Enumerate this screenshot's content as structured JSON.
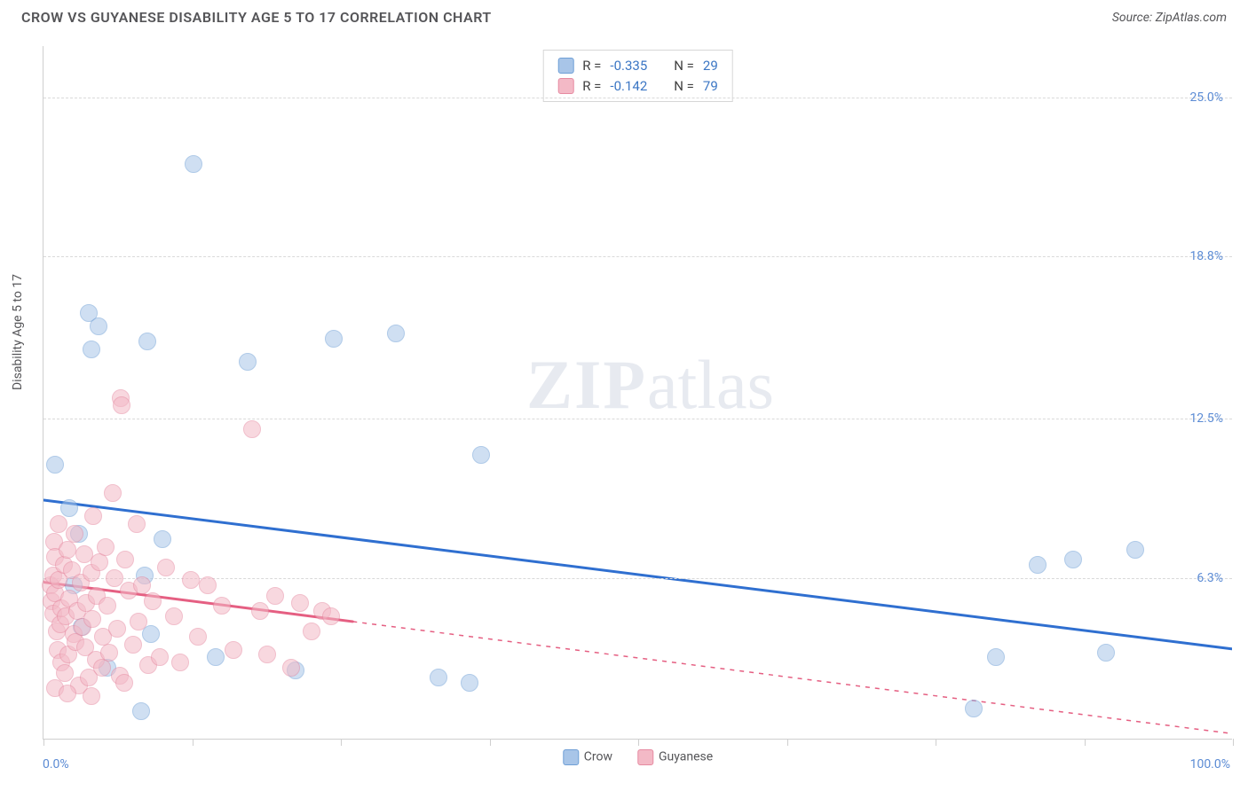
{
  "title": "CROW VS GUYANESE DISABILITY AGE 5 TO 17 CORRELATION CHART",
  "source": "Source: ZipAtlas.com",
  "y_axis_label": "Disability Age 5 to 17",
  "watermark_zip": "ZIP",
  "watermark_atlas": "atlas",
  "chart": {
    "type": "scatter",
    "xlim": [
      0,
      100
    ],
    "ylim": [
      0,
      27
    ],
    "x_min_label": "0.0%",
    "x_max_label": "100.0%",
    "x_ticks": [
      0,
      12.5,
      25,
      37.5,
      50,
      62.5,
      75,
      87.5,
      100
    ],
    "y_grid": [
      {
        "value": 6.3,
        "label": "6.3%"
      },
      {
        "value": 12.5,
        "label": "12.5%"
      },
      {
        "value": 18.8,
        "label": "18.8%"
      },
      {
        "value": 25.0,
        "label": "25.0%"
      }
    ],
    "background_color": "#ffffff",
    "grid_color": "#d9d9d9",
    "marker_radius": 10,
    "marker_opacity": 0.55,
    "series": [
      {
        "name": "Crow",
        "color_fill": "#a8c5e8",
        "color_stroke": "#6f9fd6",
        "line_color": "#2f6fd0",
        "line_width": 3,
        "r_value": "-0.335",
        "n_value": "29",
        "regression": {
          "x0": 0,
          "y0": 9.3,
          "x1": 100,
          "y1": 3.5
        },
        "regression_dash_from_x": 100,
        "points": [
          [
            1.0,
            10.7
          ],
          [
            2.2,
            9.0
          ],
          [
            3.0,
            8.0
          ],
          [
            3.8,
            16.6
          ],
          [
            4.6,
            16.1
          ],
          [
            4.0,
            15.2
          ],
          [
            8.7,
            15.5
          ],
          [
            8.5,
            6.4
          ],
          [
            8.2,
            1.1
          ],
          [
            9.0,
            4.1
          ],
          [
            10.0,
            7.8
          ],
          [
            12.6,
            22.4
          ],
          [
            14.5,
            3.2
          ],
          [
            17.2,
            14.7
          ],
          [
            21.2,
            2.7
          ],
          [
            24.4,
            15.6
          ],
          [
            29.6,
            15.8
          ],
          [
            33.2,
            2.4
          ],
          [
            35.8,
            2.2
          ],
          [
            36.8,
            11.1
          ],
          [
            78.2,
            1.2
          ],
          [
            80.1,
            3.2
          ],
          [
            83.6,
            6.8
          ],
          [
            86.6,
            7.0
          ],
          [
            89.3,
            3.4
          ],
          [
            91.8,
            7.4
          ],
          [
            2.5,
            6.0
          ],
          [
            3.2,
            4.4
          ],
          [
            5.4,
            2.8
          ]
        ]
      },
      {
        "name": "Guyanese",
        "color_fill": "#f3b9c6",
        "color_stroke": "#e68aa1",
        "line_color": "#e55f82",
        "line_width": 3,
        "r_value": "-0.142",
        "n_value": "79",
        "regression": {
          "x0": 0,
          "y0": 6.1,
          "x1": 100,
          "y1": 0.2
        },
        "regression_dash_from_x": 26,
        "points": [
          [
            0.6,
            6.0
          ],
          [
            0.7,
            5.4
          ],
          [
            0.8,
            6.4
          ],
          [
            0.8,
            4.9
          ],
          [
            0.9,
            7.7
          ],
          [
            1.0,
            5.7
          ],
          [
            1.0,
            7.1
          ],
          [
            1.1,
            4.2
          ],
          [
            1.2,
            3.5
          ],
          [
            1.3,
            6.2
          ],
          [
            1.3,
            8.4
          ],
          [
            1.4,
            4.5
          ],
          [
            1.5,
            5.1
          ],
          [
            1.5,
            3.0
          ],
          [
            1.7,
            6.8
          ],
          [
            1.8,
            2.6
          ],
          [
            1.9,
            4.8
          ],
          [
            2.0,
            7.4
          ],
          [
            2.1,
            3.3
          ],
          [
            2.2,
            5.5
          ],
          [
            2.4,
            6.6
          ],
          [
            2.5,
            4.1
          ],
          [
            2.6,
            8.0
          ],
          [
            2.7,
            3.8
          ],
          [
            2.8,
            5.0
          ],
          [
            3.0,
            2.1
          ],
          [
            3.1,
            6.1
          ],
          [
            3.3,
            4.4
          ],
          [
            3.4,
            7.2
          ],
          [
            3.5,
            3.6
          ],
          [
            3.6,
            5.3
          ],
          [
            3.8,
            2.4
          ],
          [
            4.0,
            6.5
          ],
          [
            4.1,
            4.7
          ],
          [
            4.2,
            8.7
          ],
          [
            4.4,
            3.1
          ],
          [
            4.5,
            5.6
          ],
          [
            4.7,
            6.9
          ],
          [
            4.9,
            2.8
          ],
          [
            5.0,
            4.0
          ],
          [
            5.2,
            7.5
          ],
          [
            5.4,
            5.2
          ],
          [
            5.5,
            3.4
          ],
          [
            5.8,
            9.6
          ],
          [
            6.0,
            6.3
          ],
          [
            6.2,
            4.3
          ],
          [
            6.4,
            2.5
          ],
          [
            6.5,
            13.3
          ],
          [
            6.6,
            13.0
          ],
          [
            6.9,
            7.0
          ],
          [
            7.2,
            5.8
          ],
          [
            7.5,
            3.7
          ],
          [
            7.8,
            8.4
          ],
          [
            8.0,
            4.6
          ],
          [
            8.3,
            6.0
          ],
          [
            8.8,
            2.9
          ],
          [
            9.2,
            5.4
          ],
          [
            9.8,
            3.2
          ],
          [
            10.3,
            6.7
          ],
          [
            11.0,
            4.8
          ],
          [
            11.5,
            3.0
          ],
          [
            12.4,
            6.2
          ],
          [
            13.0,
            4.0
          ],
          [
            13.8,
            6.0
          ],
          [
            15.0,
            5.2
          ],
          [
            16.0,
            3.5
          ],
          [
            17.5,
            12.1
          ],
          [
            18.2,
            5.0
          ],
          [
            18.8,
            3.3
          ],
          [
            19.5,
            5.6
          ],
          [
            20.8,
            2.8
          ],
          [
            21.6,
            5.3
          ],
          [
            22.5,
            4.2
          ],
          [
            23.4,
            5.0
          ],
          [
            24.2,
            4.8
          ],
          [
            1.0,
            2.0
          ],
          [
            2.0,
            1.8
          ],
          [
            4.0,
            1.7
          ],
          [
            6.8,
            2.2
          ]
        ]
      }
    ]
  },
  "legend_bottom": [
    {
      "label": "Crow",
      "fill": "#a8c5e8",
      "stroke": "#6f9fd6"
    },
    {
      "label": "Guyanese",
      "fill": "#f3b9c6",
      "stroke": "#e68aa1"
    }
  ]
}
